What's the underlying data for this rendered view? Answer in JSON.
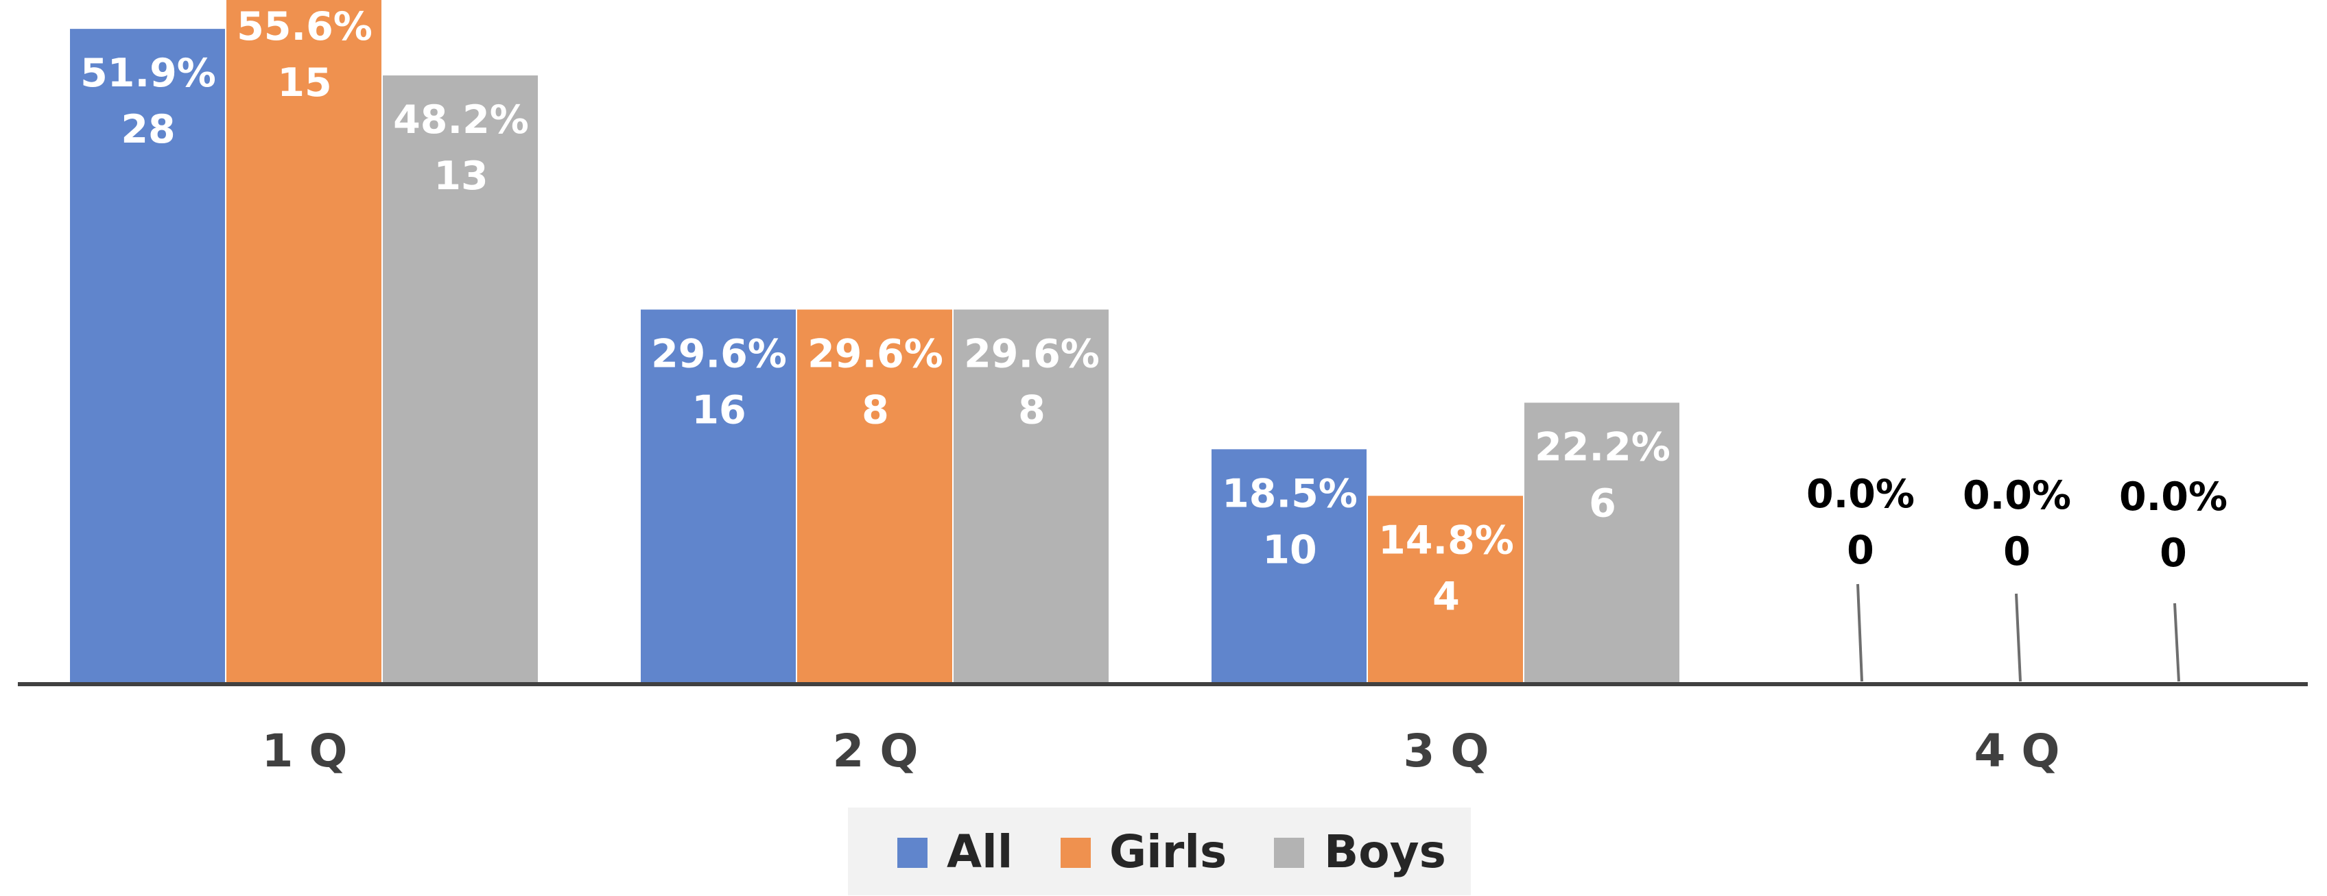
{
  "chart_data": {
    "type": "bar",
    "title": "",
    "xlabel": "",
    "ylabel": "",
    "categories": [
      "1 Q",
      "2 Q",
      "3 Q",
      "4 Q"
    ],
    "ylim": [
      0,
      56
    ],
    "grid": false,
    "legend_position": "bottom",
    "series": [
      {
        "name": "All",
        "color": "#6085cc",
        "values": [
          51.9,
          29.6,
          18.5,
          0.0
        ],
        "counts": [
          28,
          16,
          10,
          0
        ],
        "labels": [
          "51.9%",
          "29.6%",
          "18.5%",
          "0.0%"
        ]
      },
      {
        "name": "Girls",
        "color": "#ef914f",
        "values": [
          55.6,
          29.6,
          14.8,
          0.0
        ],
        "counts": [
          15,
          8,
          4,
          0
        ],
        "labels": [
          "55.6%",
          "29.6%",
          "14.8%",
          "0.0%"
        ]
      },
      {
        "name": "Boys",
        "color": "#b3b3b3",
        "values": [
          48.2,
          29.6,
          22.2,
          0.0
        ],
        "counts": [
          13,
          8,
          6,
          0
        ],
        "labels": [
          "48.2%",
          "29.6%",
          "22.2%",
          "0.0%"
        ]
      }
    ]
  }
}
